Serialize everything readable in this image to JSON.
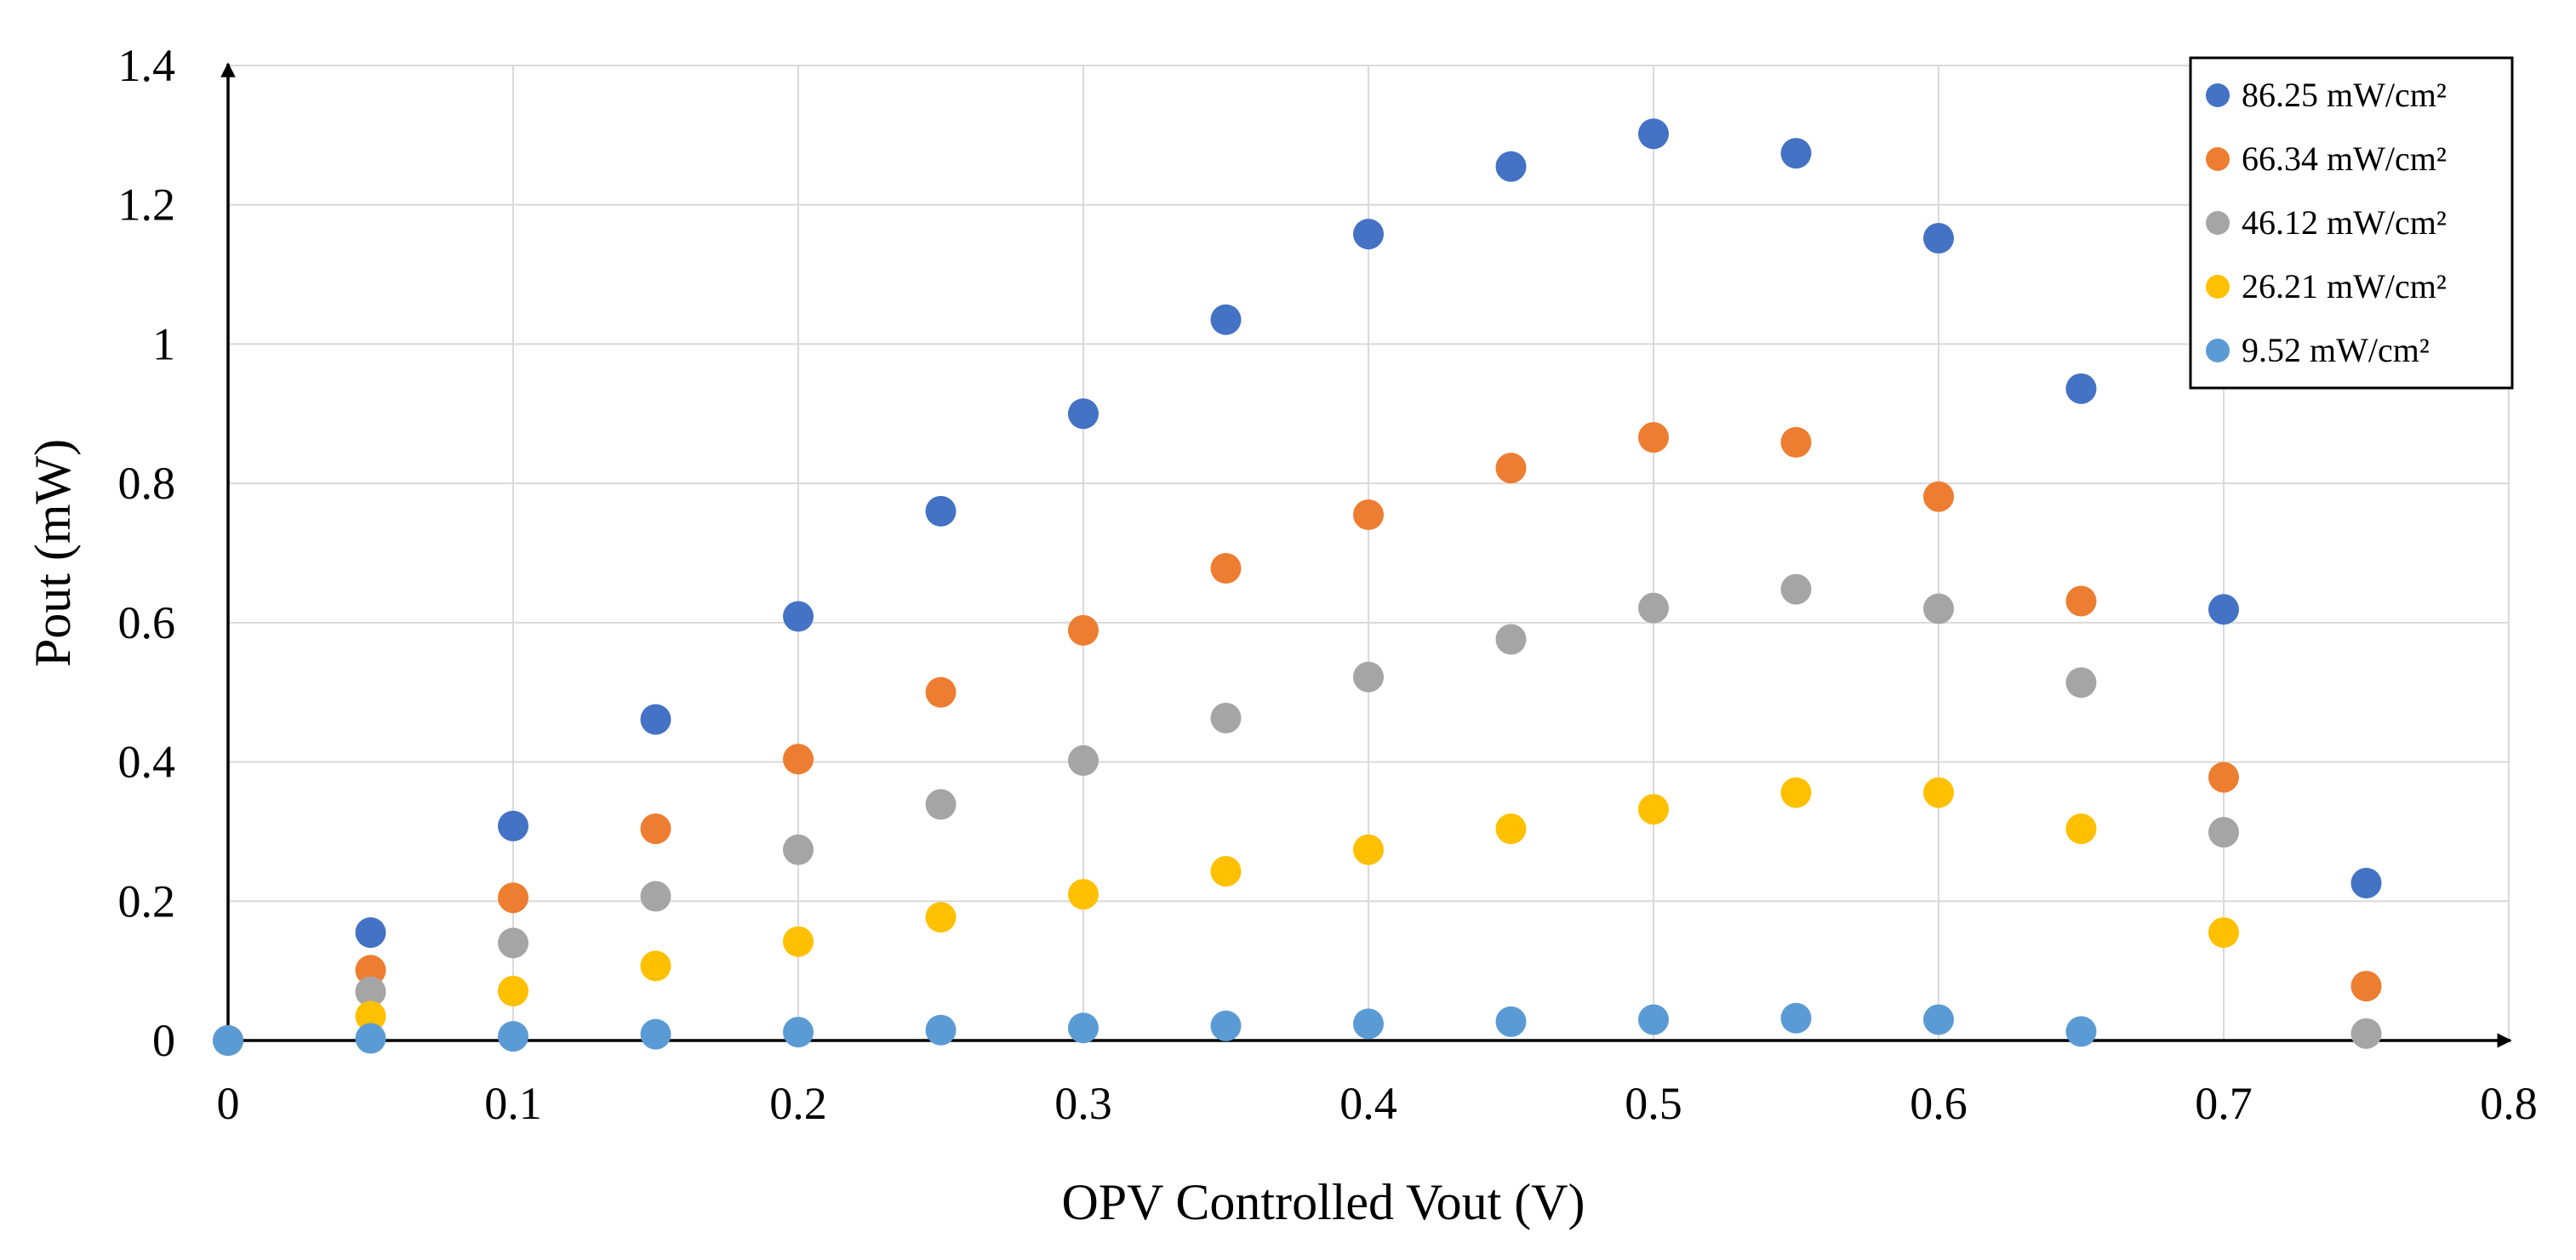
{
  "chart_data": {
    "type": "scatter",
    "title": "",
    "xlabel": "OPV Controlled Vout (V)",
    "ylabel": "Pout (mW)",
    "xlim": [
      0,
      0.8
    ],
    "ylim": [
      0,
      1.4
    ],
    "xticks": [
      0,
      0.1,
      0.2,
      0.3,
      0.4,
      0.5,
      0.6,
      0.7,
      0.8
    ],
    "yticks": [
      0,
      0.2,
      0.4,
      0.6,
      0.8,
      1,
      1.2,
      1.4
    ],
    "xtick_labels": [
      "0",
      "0.1",
      "0.2",
      "0.3",
      "0.4",
      "0.5",
      "0.6",
      "0.7",
      "0.8"
    ],
    "ytick_labels": [
      "0",
      "0.2",
      "0.4",
      "0.6",
      "0.8",
      "1",
      "1.2",
      "1.4"
    ],
    "grid": true,
    "legend_position": "top-right",
    "series": [
      {
        "name": "86.25 mW/cm²",
        "color": "#4472c4",
        "x": [
          0,
          0.05,
          0.1,
          0.15,
          0.2,
          0.25,
          0.3,
          0.35,
          0.4,
          0.45,
          0.5,
          0.55,
          0.6,
          0.65,
          0.7,
          0.75
        ],
        "y": [
          0,
          0.155,
          0.308,
          0.461,
          0.609,
          0.76,
          0.9,
          1.035,
          1.158,
          1.255,
          1.302,
          1.274,
          1.152,
          0.936,
          0.619,
          0.226
        ]
      },
      {
        "name": "66.34 mW/cm²",
        "color": "#ed7d31",
        "x": [
          0,
          0.05,
          0.1,
          0.15,
          0.2,
          0.25,
          0.3,
          0.35,
          0.4,
          0.45,
          0.5,
          0.55,
          0.6,
          0.65,
          0.7,
          0.75
        ],
        "y": [
          0,
          0.101,
          0.205,
          0.304,
          0.404,
          0.5,
          0.589,
          0.678,
          0.755,
          0.822,
          0.866,
          0.859,
          0.781,
          0.631,
          0.378,
          0.078
        ]
      },
      {
        "name": "46.12 mW/cm²",
        "color": "#a5a5a5",
        "x": [
          0,
          0.05,
          0.1,
          0.15,
          0.2,
          0.25,
          0.3,
          0.35,
          0.4,
          0.45,
          0.5,
          0.55,
          0.6,
          0.65,
          0.7,
          0.75
        ],
        "y": [
          0,
          0.07,
          0.14,
          0.207,
          0.274,
          0.339,
          0.402,
          0.463,
          0.522,
          0.576,
          0.621,
          0.648,
          0.62,
          0.514,
          0.299,
          0.01
        ]
      },
      {
        "name": "26.21 mW/cm²",
        "color": "#ffc000",
        "x": [
          0,
          0.05,
          0.1,
          0.15,
          0.2,
          0.25,
          0.3,
          0.35,
          0.4,
          0.45,
          0.5,
          0.55,
          0.6,
          0.65,
          0.7
        ],
        "y": [
          0,
          0.035,
          0.071,
          0.107,
          0.142,
          0.177,
          0.21,
          0.243,
          0.274,
          0.304,
          0.332,
          0.356,
          0.356,
          0.304,
          0.155
        ]
      },
      {
        "name": "9.52 mW/cm²",
        "color": "#5b9bd5",
        "x": [
          0,
          0.05,
          0.1,
          0.15,
          0.2,
          0.25,
          0.3,
          0.35,
          0.4,
          0.45,
          0.5,
          0.55,
          0.6,
          0.65
        ],
        "y": [
          0,
          0.003,
          0.006,
          0.009,
          0.012,
          0.015,
          0.018,
          0.021,
          0.024,
          0.027,
          0.03,
          0.032,
          0.03,
          0.013
        ]
      }
    ]
  }
}
